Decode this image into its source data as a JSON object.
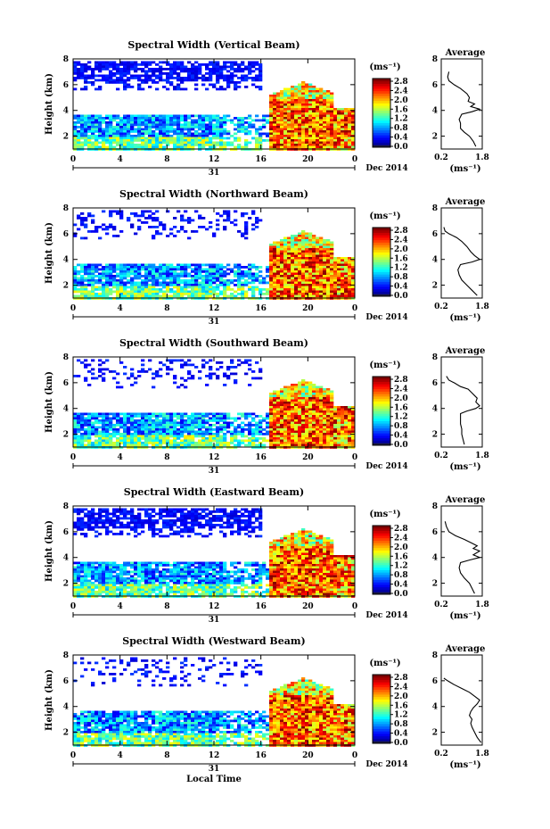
{
  "chart_data": [
    {
      "type": "heatmap",
      "title": "Spectral Width (Vertical Beam)",
      "ylabel": "Height (km)",
      "x_ticks": [
        "0",
        "4",
        "8",
        "12",
        "16",
        "20",
        "0"
      ],
      "y_ticks": [
        "2",
        "4",
        "6",
        "8"
      ],
      "date_day": "31",
      "date_text": "Dec 2014",
      "xlim": [
        0,
        24
      ],
      "ylim": [
        1,
        8
      ],
      "colorbar_unit": "(ms⁻¹)",
      "colorbar_ticks": [
        "0.0",
        "0.4",
        "0.8",
        "1.2",
        "1.6",
        "2.0",
        "2.4",
        "2.8"
      ],
      "profile": {
        "title": "Average",
        "xlabel": "(ms⁻¹)",
        "x_ticks": [
          "0.2",
          "1.8"
        ],
        "y_ticks": [
          "2",
          "4",
          "6",
          "8"
        ],
        "xlim": [
          0.2,
          1.8
        ],
        "ylim": [
          1,
          8
        ],
        "points": [
          [
            0.5,
            7.0
          ],
          [
            0.45,
            6.6
          ],
          [
            0.5,
            6.3
          ],
          [
            0.7,
            6.0
          ],
          [
            0.95,
            5.7
          ],
          [
            1.2,
            5.3
          ],
          [
            1.3,
            5.0
          ],
          [
            1.25,
            4.7
          ],
          [
            1.5,
            4.5
          ],
          [
            1.35,
            4.3
          ],
          [
            1.7,
            4.1
          ],
          [
            1.4,
            3.9
          ],
          [
            1.0,
            3.7
          ],
          [
            0.9,
            3.3
          ],
          [
            0.95,
            3.0
          ],
          [
            0.95,
            2.6
          ],
          [
            1.1,
            2.3
          ],
          [
            1.3,
            2.0
          ],
          [
            1.45,
            1.6
          ],
          [
            1.55,
            1.2
          ]
        ]
      }
    },
    {
      "type": "heatmap",
      "title": "Spectral Width (Northward Beam)",
      "ylabel": "Height (km)",
      "x_ticks": [
        "0",
        "4",
        "8",
        "12",
        "16",
        "20",
        "0"
      ],
      "y_ticks": [
        "2",
        "4",
        "6",
        "8"
      ],
      "date_day": "31",
      "date_text": "Dec 2014",
      "xlim": [
        0,
        24
      ],
      "ylim": [
        1,
        8
      ],
      "colorbar_unit": "(ms⁻¹)",
      "colorbar_ticks": [
        "0.0",
        "0.4",
        "0.8",
        "1.2",
        "1.6",
        "2.0",
        "2.4",
        "2.8"
      ],
      "profile": {
        "title": "Average",
        "xlabel": "(ms⁻¹)",
        "x_ticks": [
          "0.2",
          "1.8"
        ],
        "y_ticks": [
          "2",
          "4",
          "6",
          "8"
        ],
        "xlim": [
          0.2,
          1.8
        ],
        "ylim": [
          1,
          8
        ],
        "points": [
          [
            0.3,
            6.5
          ],
          [
            0.35,
            6.2
          ],
          [
            0.5,
            6.0
          ],
          [
            0.8,
            5.7
          ],
          [
            1.0,
            5.4
          ],
          [
            1.2,
            5.0
          ],
          [
            1.35,
            4.6
          ],
          [
            1.5,
            4.3
          ],
          [
            1.7,
            4.0
          ],
          [
            1.4,
            3.8
          ],
          [
            0.95,
            3.6
          ],
          [
            0.85,
            3.2
          ],
          [
            0.9,
            2.8
          ],
          [
            1.0,
            2.4
          ],
          [
            1.2,
            2.0
          ],
          [
            1.4,
            1.6
          ],
          [
            1.6,
            1.2
          ]
        ]
      }
    },
    {
      "type": "heatmap",
      "title": "Spectral Width (Southward Beam)",
      "ylabel": "Height (km)",
      "x_ticks": [
        "0",
        "4",
        "8",
        "12",
        "16",
        "20",
        "0"
      ],
      "y_ticks": [
        "2",
        "4",
        "6",
        "8"
      ],
      "date_day": "31",
      "date_text": "Dec 2014",
      "xlim": [
        0,
        24
      ],
      "ylim": [
        1,
        8
      ],
      "colorbar_unit": "(ms⁻¹)",
      "colorbar_ticks": [
        "0.0",
        "0.4",
        "0.8",
        "1.2",
        "1.6",
        "2.0",
        "2.4",
        "2.8"
      ],
      "profile": {
        "title": "Average",
        "xlabel": "(ms⁻¹)",
        "x_ticks": [
          "0.2",
          "1.8"
        ],
        "y_ticks": [
          "2",
          "4",
          "6",
          "8"
        ],
        "xlim": [
          0.2,
          1.8
        ],
        "ylim": [
          1,
          8
        ],
        "points": [
          [
            0.4,
            6.5
          ],
          [
            0.5,
            6.2
          ],
          [
            0.7,
            6.0
          ],
          [
            0.95,
            5.7
          ],
          [
            1.25,
            5.5
          ],
          [
            1.4,
            5.2
          ],
          [
            1.5,
            5.0
          ],
          [
            1.6,
            4.8
          ],
          [
            1.55,
            4.5
          ],
          [
            1.7,
            4.2
          ],
          [
            1.55,
            4.0
          ],
          [
            1.2,
            3.8
          ],
          [
            0.95,
            3.6
          ],
          [
            0.95,
            3.2
          ],
          [
            0.95,
            2.8
          ],
          [
            1.0,
            2.4
          ],
          [
            1.0,
            2.0
          ],
          [
            1.05,
            1.6
          ],
          [
            1.1,
            1.2
          ]
        ]
      }
    },
    {
      "type": "heatmap",
      "title": "Spectral Width (Eastward Beam)",
      "ylabel": "Height (km)",
      "x_ticks": [
        "0",
        "4",
        "8",
        "12",
        "16",
        "20",
        "0"
      ],
      "y_ticks": [
        "2",
        "4",
        "6",
        "8"
      ],
      "date_day": "31",
      "date_text": "Dec 2014",
      "xlim": [
        0,
        24
      ],
      "ylim": [
        1,
        8
      ],
      "colorbar_unit": "(ms⁻¹)",
      "colorbar_ticks": [
        "0.0",
        "0.4",
        "0.8",
        "1.2",
        "1.6",
        "2.0",
        "2.4",
        "2.8"
      ],
      "profile": {
        "title": "Average",
        "xlabel": "(ms⁻¹)",
        "x_ticks": [
          "0.2",
          "1.8"
        ],
        "y_ticks": [
          "2",
          "4",
          "6",
          "8"
        ],
        "xlim": [
          0.2,
          1.8
        ],
        "ylim": [
          1,
          8
        ],
        "points": [
          [
            0.35,
            6.8
          ],
          [
            0.4,
            6.4
          ],
          [
            0.5,
            6.0
          ],
          [
            0.75,
            5.7
          ],
          [
            1.1,
            5.4
          ],
          [
            1.4,
            5.1
          ],
          [
            1.6,
            4.9
          ],
          [
            1.45,
            4.7
          ],
          [
            1.7,
            4.5
          ],
          [
            1.45,
            4.2
          ],
          [
            1.7,
            4.0
          ],
          [
            1.3,
            3.8
          ],
          [
            0.95,
            3.6
          ],
          [
            0.9,
            3.2
          ],
          [
            0.95,
            2.8
          ],
          [
            1.1,
            2.4
          ],
          [
            1.3,
            2.0
          ],
          [
            1.4,
            1.6
          ],
          [
            1.5,
            1.2
          ]
        ]
      }
    },
    {
      "type": "heatmap",
      "title": "Spectral Width (Westward Beam)",
      "ylabel": "Height (km)",
      "xlabel": "Local Time",
      "x_ticks": [
        "0",
        "4",
        "8",
        "12",
        "16",
        "20",
        "0"
      ],
      "y_ticks": [
        "2",
        "4",
        "6",
        "8"
      ],
      "date_day": "31",
      "date_text": "Dec 2014",
      "xlim": [
        0,
        24
      ],
      "ylim": [
        1,
        8
      ],
      "colorbar_unit": "(ms⁻¹)",
      "colorbar_ticks": [
        "0.0",
        "0.4",
        "0.8",
        "1.2",
        "1.6",
        "2.0",
        "2.4",
        "2.8"
      ],
      "profile": {
        "title": "Average",
        "xlabel": "(ms⁻¹)",
        "x_ticks": [
          "0.2",
          "1.8"
        ],
        "y_ticks": [
          "2",
          "4",
          "6",
          "8"
        ],
        "xlim": [
          0.2,
          1.8
        ],
        "ylim": [
          1,
          8
        ],
        "points": [
          [
            0.3,
            6.2
          ],
          [
            0.45,
            6.0
          ],
          [
            0.7,
            5.7
          ],
          [
            1.0,
            5.4
          ],
          [
            1.3,
            5.1
          ],
          [
            1.5,
            4.8
          ],
          [
            1.7,
            4.5
          ],
          [
            1.6,
            4.2
          ],
          [
            1.45,
            3.9
          ],
          [
            1.35,
            3.6
          ],
          [
            1.3,
            3.3
          ],
          [
            1.4,
            3.0
          ],
          [
            1.35,
            2.7
          ],
          [
            1.4,
            2.4
          ],
          [
            1.5,
            2.0
          ],
          [
            1.6,
            1.6
          ],
          [
            1.75,
            1.2
          ]
        ]
      }
    }
  ],
  "colors": {
    "low": "#3b3fd0",
    "mid": "#3fd0e8",
    "high": "#e81c10"
  }
}
